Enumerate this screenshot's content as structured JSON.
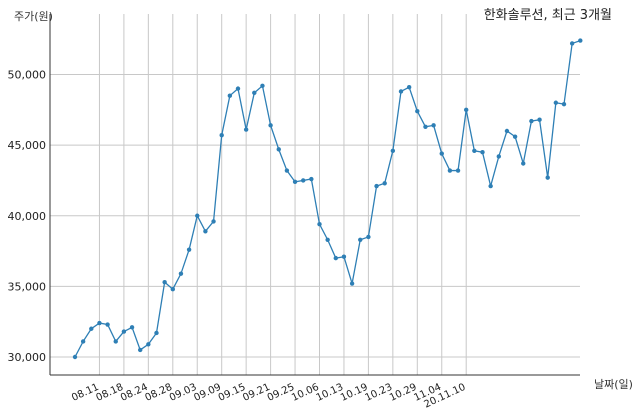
{
  "chart_data": {
    "type": "line",
    "title": "한화솔루션, 최근 3개월",
    "xlabel": "날짜(일)",
    "ylabel": "주가(원)",
    "ylim": [
      29000,
      53500
    ],
    "y_ticks": [
      30000,
      35000,
      40000,
      45000,
      50000
    ],
    "y_tick_labels": [
      "30,000",
      "35,000",
      "40,000",
      "45,000",
      "50,000"
    ],
    "x_tick_labels": [
      "08.11",
      "08.18",
      "08.24",
      "08.28",
      "09.03",
      "09.09",
      "09.15",
      "09.21",
      "09.25",
      "10.06",
      "10.13",
      "10.19",
      "10.23",
      "10.29",
      "11.04",
      "20.11.10"
    ],
    "x_tick_indices": [
      3,
      6,
      9,
      12,
      15,
      18,
      21,
      24,
      27,
      30,
      33,
      36,
      39,
      42,
      45,
      48
    ],
    "grid": true,
    "series": [
      {
        "color": "#2e7fb5",
        "values": [
          30000,
          31100,
          32000,
          32400,
          32300,
          31100,
          31800,
          32100,
          30500,
          30900,
          31700,
          35300,
          34800,
          35900,
          37600,
          40000,
          38900,
          39600,
          45700,
          48500,
          49000,
          46100,
          48700,
          49200,
          46400,
          44700,
          43200,
          42400,
          42500,
          42600,
          39400,
          38300,
          37000,
          37100,
          35200,
          38300,
          38500,
          42100,
          42300,
          44600,
          48800,
          49100,
          47400,
          46300,
          46400,
          44400,
          43200,
          43200,
          47500,
          44600,
          44500,
          42100,
          44200,
          46000,
          45600,
          43700,
          46700,
          46800,
          42700,
          48000,
          47900,
          52200,
          52400
        ]
      }
    ]
  }
}
